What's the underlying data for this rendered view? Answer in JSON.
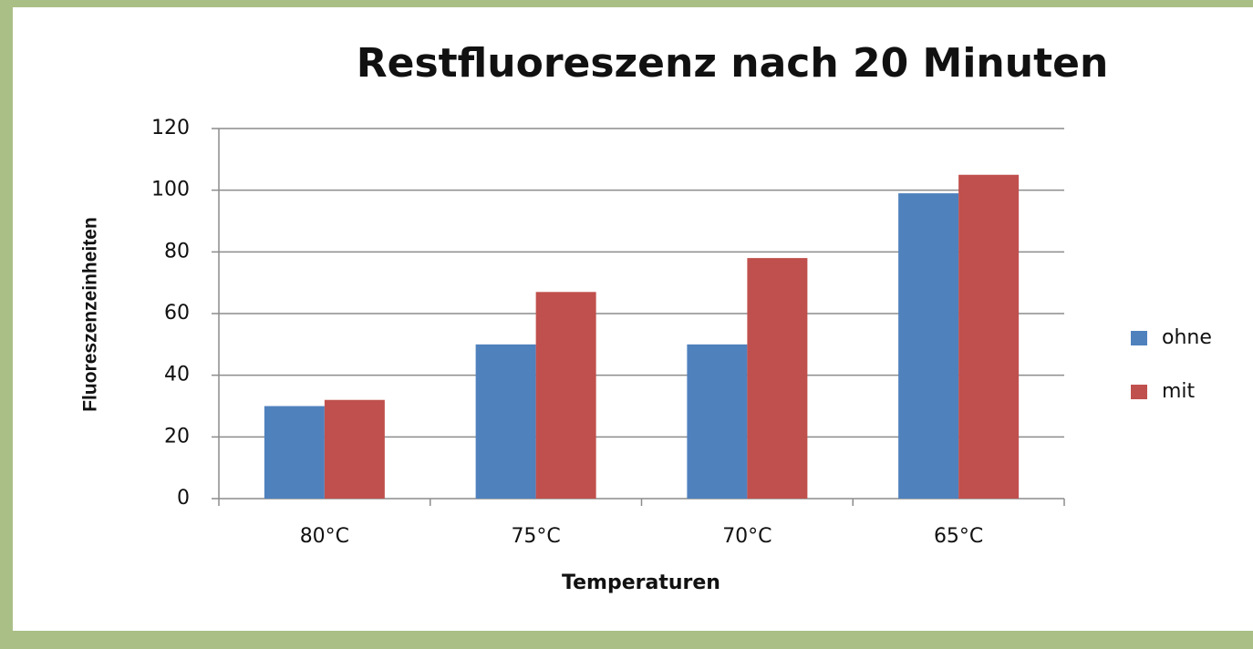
{
  "chart_data": {
    "type": "bar",
    "title": "Restfluoreszenz nach 20 Minuten",
    "x_label": "Temperaturen",
    "y_label": "Fluoreszenzeinheiten",
    "categories": [
      "80°C",
      "75°C",
      "70°C",
      "65°C"
    ],
    "series": [
      {
        "name": "ohne",
        "color": "#4f81bd",
        "values": [
          30,
          50,
          50,
          99
        ]
      },
      {
        "name": "mit",
        "color": "#c0504d",
        "values": [
          32,
          67,
          78,
          105
        ]
      }
    ],
    "ylim": [
      0,
      120
    ],
    "yticks": [
      0,
      20,
      40,
      60,
      80,
      100,
      120
    ],
    "grid": true,
    "legend": "right"
  }
}
